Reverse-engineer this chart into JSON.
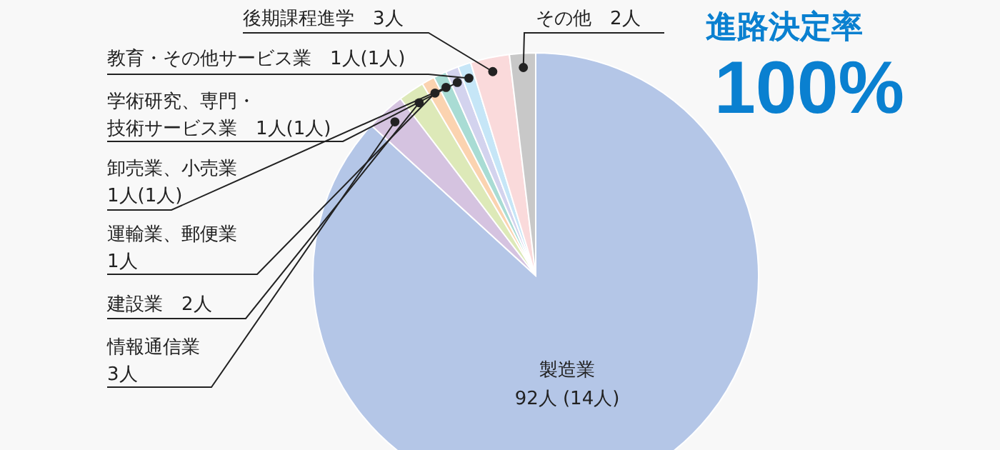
{
  "chart_data": {
    "type": "pie",
    "categories": [
      "製造業",
      "情報通信業",
      "建設業",
      "運輸業、郵便業",
      "卸売業、小売業",
      "学術研究、専門・技術サービス業",
      "教育・その他サービス業",
      "後期課程進学",
      "その他"
    ],
    "values": [
      92,
      3,
      2,
      1,
      1,
      1,
      1,
      3,
      2
    ],
    "value_labels": [
      "92人 (14人)",
      "3人",
      "2人",
      "1人",
      "1人(1人)",
      "1人(1人)",
      "1人(1人)",
      "3人",
      "2人"
    ],
    "colors": [
      "#b4c6e7",
      "#d5c3e0",
      "#dde9b8",
      "#fbd3b0",
      "#a9dcd4",
      "#d3d3ee",
      "#c6e6f7",
      "#fadadb",
      "#c8c8c8"
    ],
    "annotations": [
      "進路決定率",
      "100%"
    ]
  }
}
